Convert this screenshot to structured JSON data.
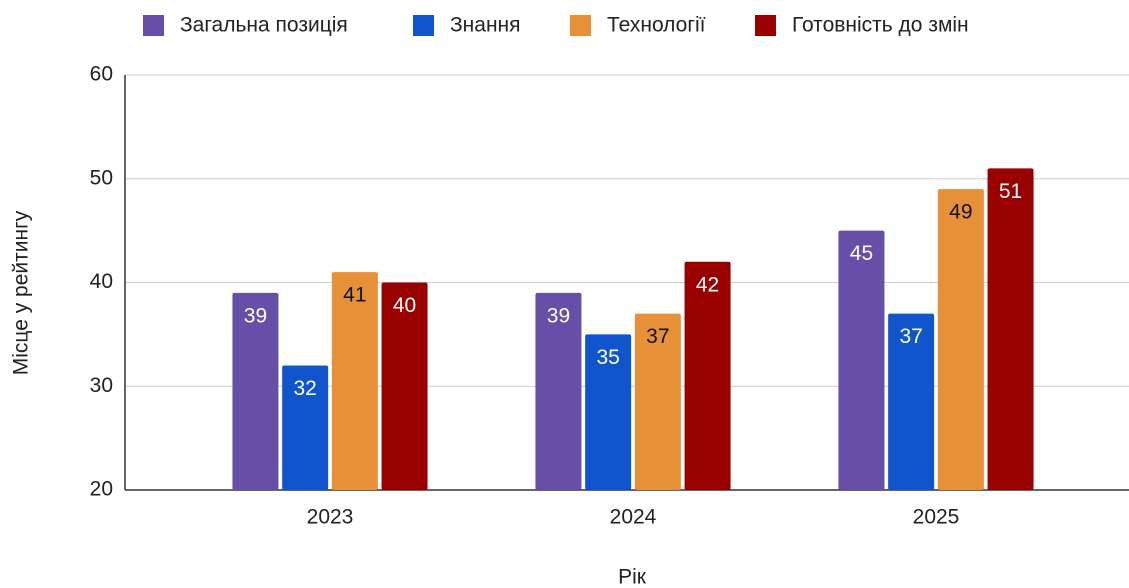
{
  "chart_data": {
    "type": "bar",
    "x_label": "Рік",
    "y_label": "Місце у рейтингу",
    "categories": [
      "2023",
      "2024",
      "2025"
    ],
    "series": [
      {
        "name": "Загальна позиція",
        "color": "#674ea7",
        "values": [
          39,
          39,
          45
        ]
      },
      {
        "name": "Знання",
        "color": "#1155cc",
        "values": [
          32,
          35,
          37
        ]
      },
      {
        "name": "Технології",
        "color": "#e69138",
        "values": [
          41,
          37,
          49
        ]
      },
      {
        "name": "Готовність до змін",
        "color": "#990000",
        "values": [
          40,
          42,
          51
        ]
      }
    ],
    "ylim": [
      20,
      60
    ],
    "yticks": [
      20,
      30,
      40,
      50,
      60
    ],
    "grid": true,
    "legend": "top"
  }
}
